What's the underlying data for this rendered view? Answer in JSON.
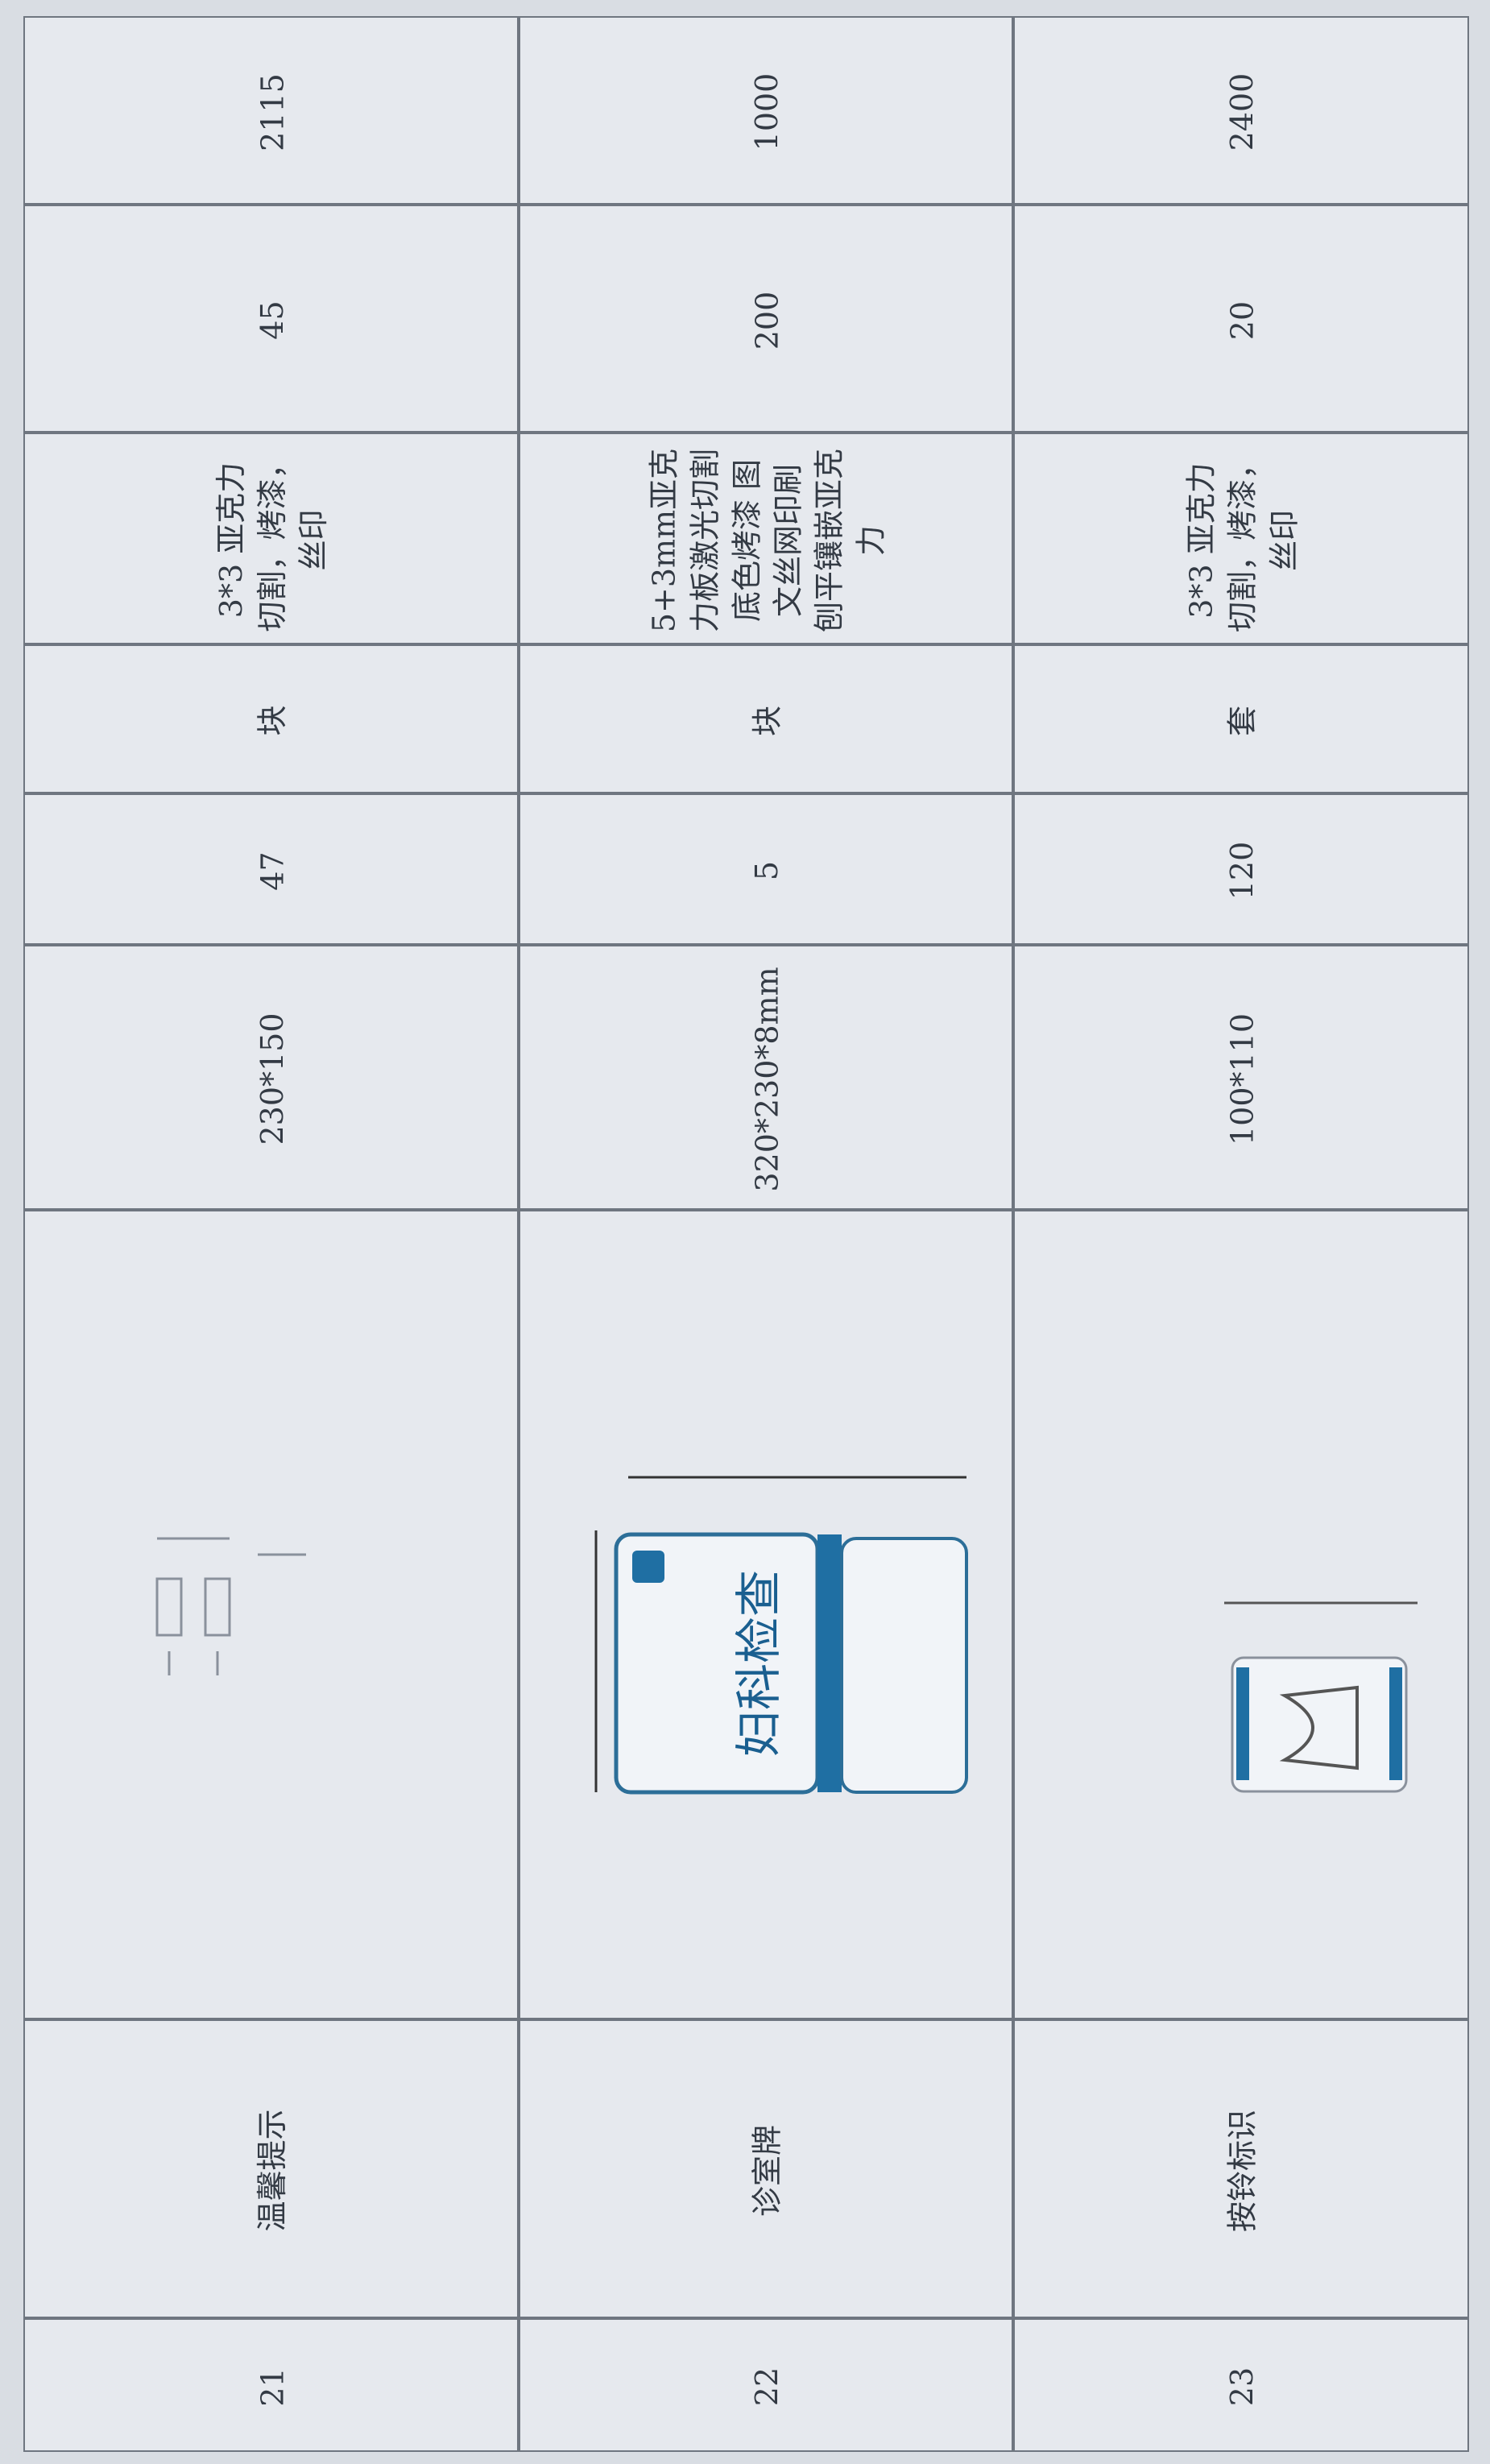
{
  "table": {
    "rows": [
      [
        "21",
        "温馨提示",
        "230*150",
        "47",
        "块",
        "3*3 亚克力切割，烤漆，丝印",
        "45",
        "2115"
      ],
      [
        "22",
        "诊室牌",
        "320*230*8mm",
        "5",
        "块",
        "5+3mm亚克力板激光切割 底色烤漆 图文丝网印刷 刨平镶嵌亚克力",
        "200",
        "1000"
      ],
      [
        "23",
        "按铃标识",
        "100*110",
        "120",
        "套",
        "3*3 亚克力切割，烤漆，丝印",
        "20",
        "2400"
      ]
    ]
  },
  "sign_label": "妇科检查"
}
